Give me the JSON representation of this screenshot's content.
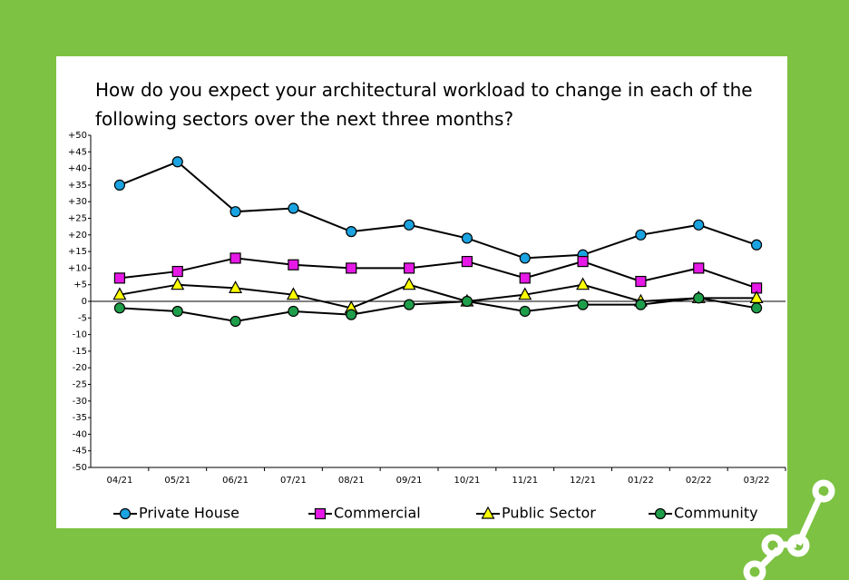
{
  "chart_data": {
    "type": "line",
    "title": [
      "How do you expect your architectural workload to change in each of the",
      "following sectors over the next three months?"
    ],
    "categories": [
      "04/21",
      "05/21",
      "06/21",
      "07/21",
      "08/21",
      "09/21",
      "10/21",
      "11/21",
      "12/21",
      "01/22",
      "02/22",
      "03/22"
    ],
    "series": [
      {
        "name": "Private House",
        "color": "#1aa3e0",
        "marker": "circle",
        "values": [
          35,
          42,
          27,
          28,
          21,
          23,
          19,
          13,
          14,
          20,
          23,
          17
        ]
      },
      {
        "name": "Commercial",
        "color": "#e619e6",
        "marker": "square",
        "values": [
          7,
          9,
          13,
          11,
          10,
          10,
          12,
          7,
          12,
          6,
          10,
          4
        ]
      },
      {
        "name": "Public Sector",
        "color": "#ffff00",
        "marker": "triangle",
        "values": [
          2,
          5,
          4,
          2,
          -2,
          5,
          0,
          2,
          5,
          0,
          1,
          1
        ]
      },
      {
        "name": "Community",
        "color": "#1e9e4a",
        "marker": "circle",
        "values": [
          -2,
          -3,
          -6,
          -3,
          -4,
          -1,
          0,
          -3,
          -1,
          -1,
          1,
          -2
        ]
      }
    ],
    "ylim": [
      -50,
      50
    ],
    "yticks": [
      {
        "value": 50,
        "label": "+50"
      },
      {
        "value": 45,
        "label": "+45"
      },
      {
        "value": 40,
        "label": "+40"
      },
      {
        "value": 35,
        "label": "+35"
      },
      {
        "value": 30,
        "label": "+30"
      },
      {
        "value": 25,
        "label": "+25"
      },
      {
        "value": 20,
        "label": "+20"
      },
      {
        "value": 15,
        "label": "+15"
      },
      {
        "value": 10,
        "label": "+10"
      },
      {
        "value": 5,
        "label": "+5"
      },
      0,
      -5,
      -10,
      -15,
      -20,
      -25,
      -30,
      -35,
      -40,
      -45,
      -50
    ],
    "grid": false,
    "legend": "bottom"
  }
}
